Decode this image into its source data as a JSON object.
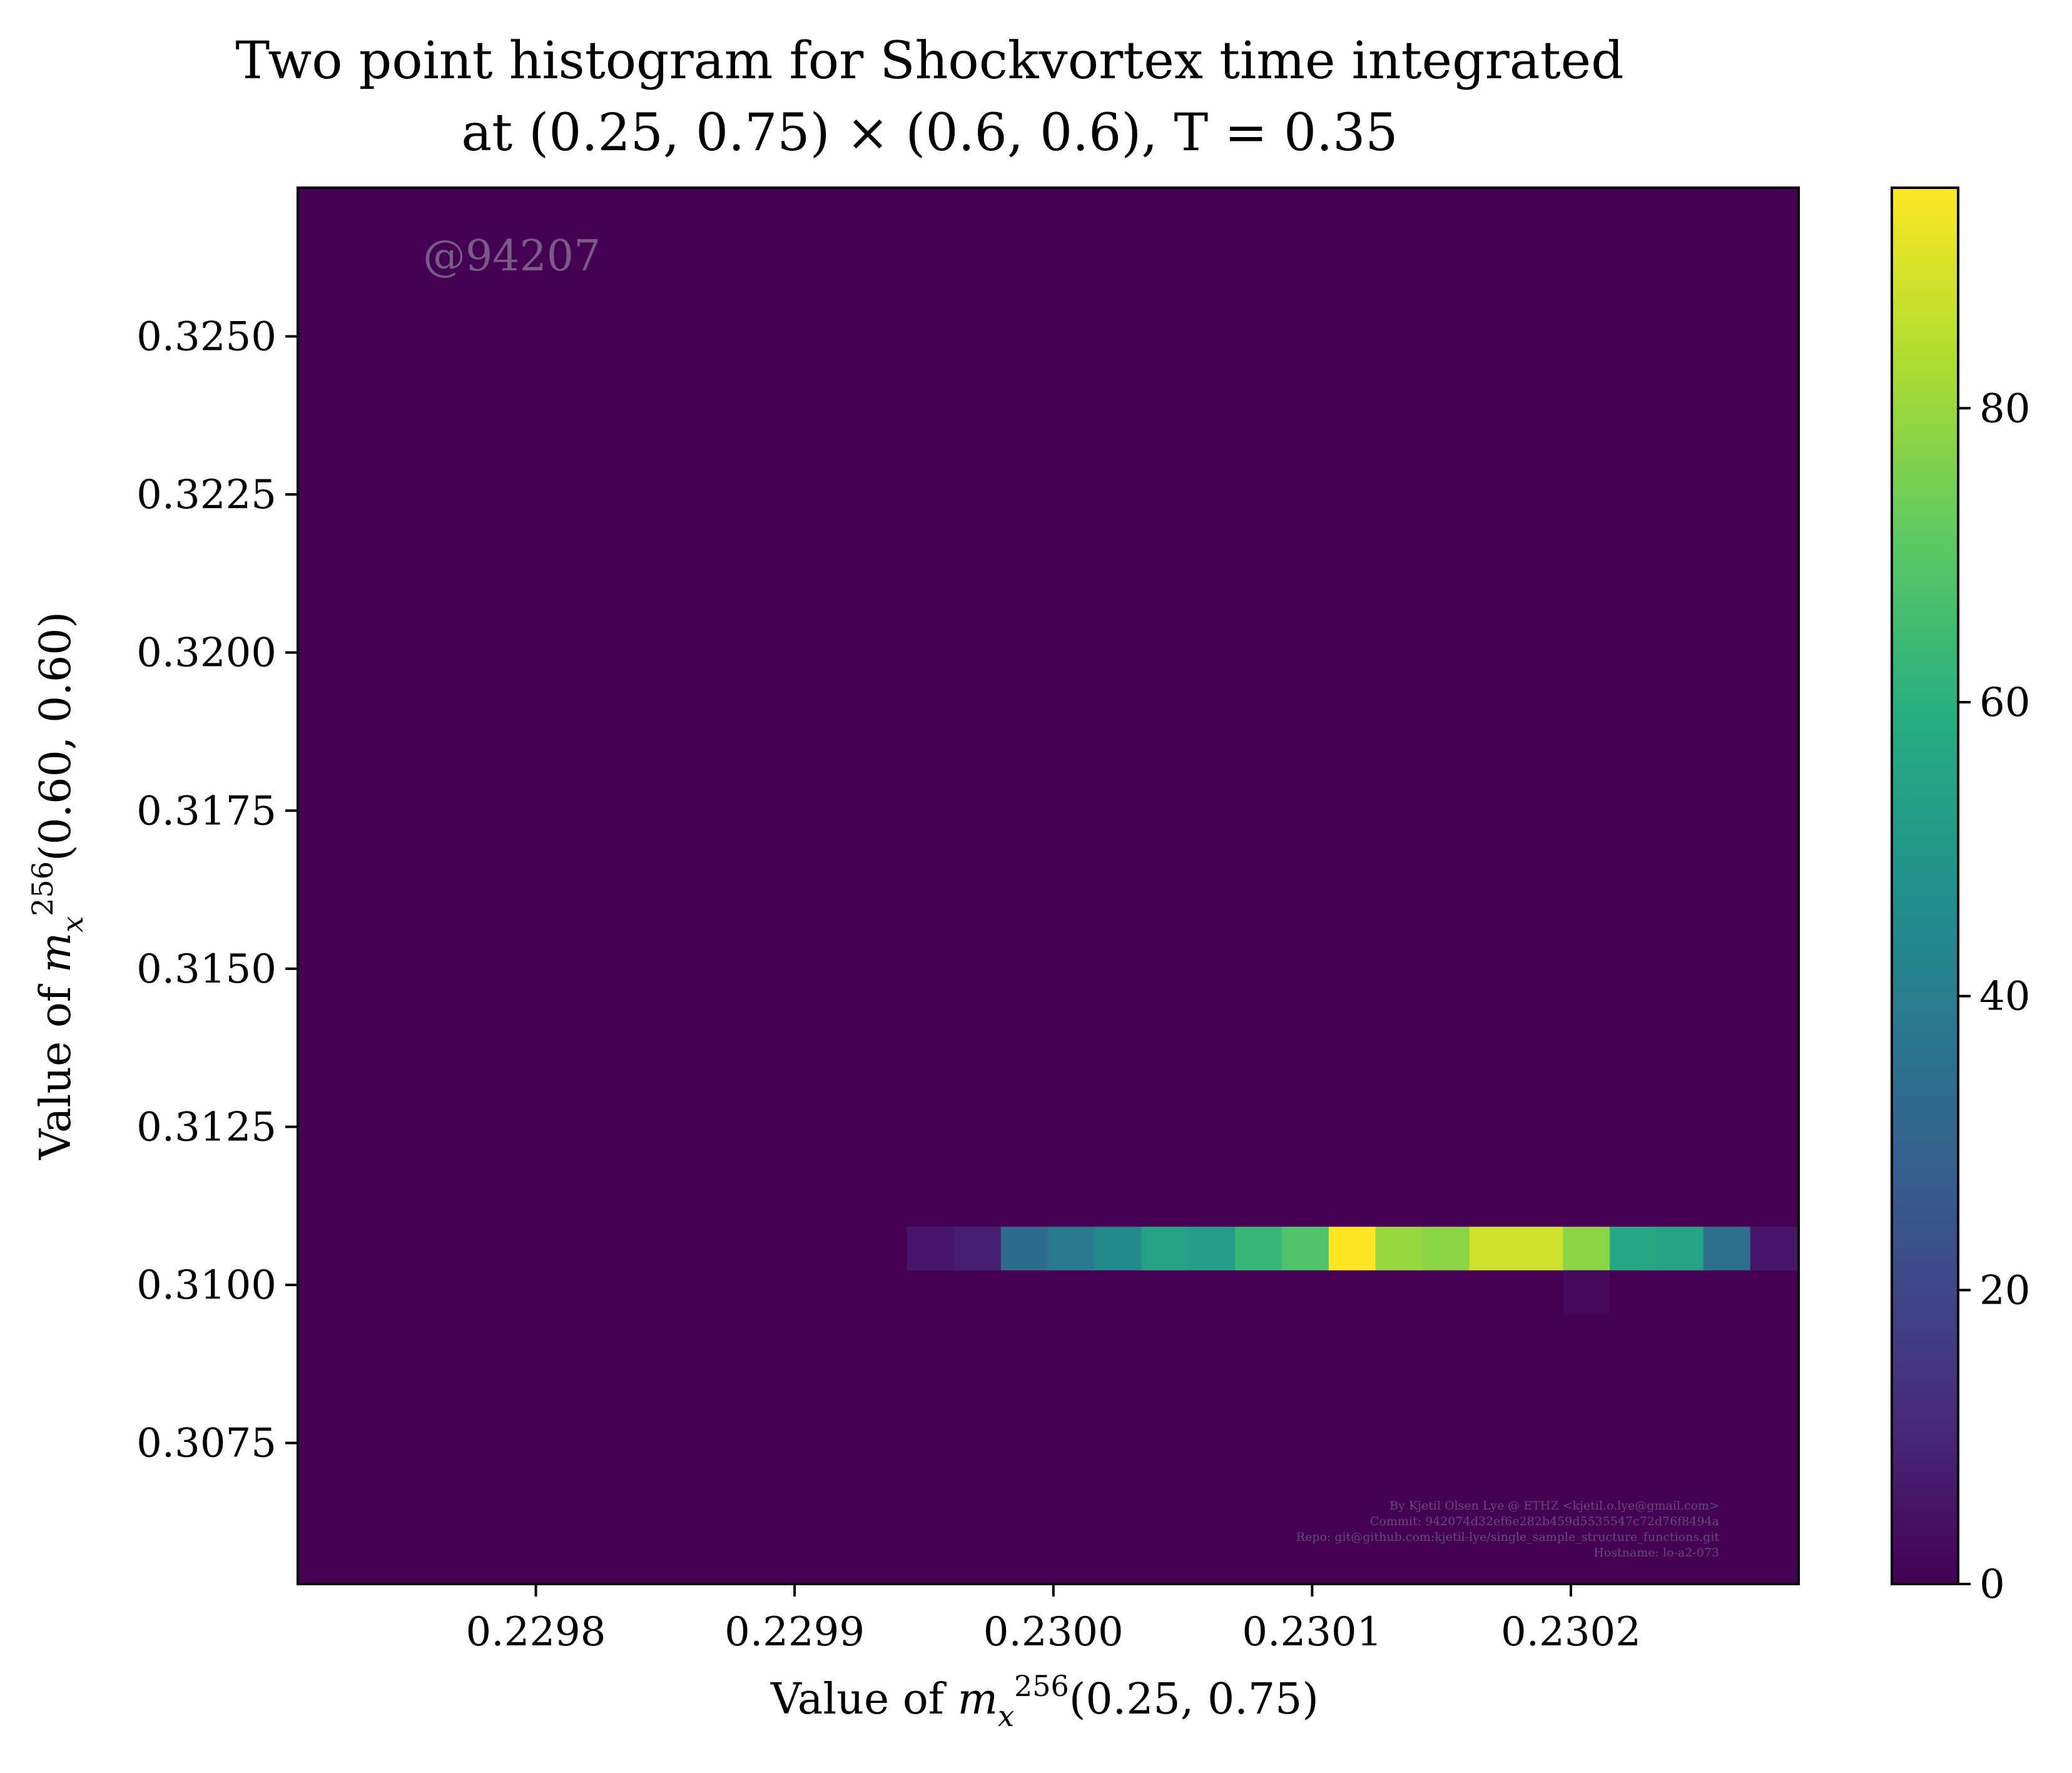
{
  "chart_data": {
    "type": "heatmap",
    "title_lines": [
      "Two point histogram for Shockvortex time integrated",
      "at (0.25, 0.75) × (0.6, 0.6), T = 0.35"
    ],
    "xlabel": "Value of m_x^256(0.25, 0.75)",
    "ylabel": "Value of m_x^256(0.60, 0.60)",
    "xlim": [
      0.229708,
      0.230288
    ],
    "ylim": [
      0.30527,
      0.32735
    ],
    "x_ticks": [
      0.2298,
      0.2299,
      0.23,
      0.2301,
      0.2302
    ],
    "x_tick_labels": [
      "0.2298",
      "0.2299",
      "0.2300",
      "0.2301",
      "0.2302"
    ],
    "y_ticks": [
      0.3075,
      0.31,
      0.3125,
      0.315,
      0.3175,
      0.32,
      0.3225,
      0.325
    ],
    "y_tick_labels": [
      "0.3075",
      "0.3100",
      "0.3125",
      "0.3150",
      "0.3175",
      "0.3200",
      "0.3225",
      "0.3250"
    ],
    "colormap": "viridis",
    "colorbar": {
      "vmin": 0,
      "vmax": 95,
      "ticks": [
        0,
        20,
        40,
        60,
        80
      ],
      "tick_labels": [
        "0",
        "20",
        "40",
        "60",
        "80"
      ]
    },
    "bin_width_x": 1.81e-05,
    "bin_height_y": 0.00069,
    "cells": [
      {
        "x0": 0.2299435,
        "y0": 0.31023,
        "value": 6
      },
      {
        "x0": 0.2299616,
        "y0": 0.31023,
        "value": 8
      },
      {
        "x0": 0.2299797,
        "y0": 0.31023,
        "value": 33
      },
      {
        "x0": 0.2299978,
        "y0": 0.31023,
        "value": 38
      },
      {
        "x0": 0.2300159,
        "y0": 0.31023,
        "value": 45
      },
      {
        "x0": 0.230034,
        "y0": 0.31023,
        "value": 55
      },
      {
        "x0": 0.2300521,
        "y0": 0.31023,
        "value": 52
      },
      {
        "x0": 0.2300702,
        "y0": 0.31023,
        "value": 63
      },
      {
        "x0": 0.2300883,
        "y0": 0.31023,
        "value": 68
      },
      {
        "x0": 0.2301064,
        "y0": 0.31023,
        "value": 95
      },
      {
        "x0": 0.2301245,
        "y0": 0.31023,
        "value": 80
      },
      {
        "x0": 0.2301426,
        "y0": 0.31023,
        "value": 78
      },
      {
        "x0": 0.2301607,
        "y0": 0.31023,
        "value": 88
      },
      {
        "x0": 0.2301788,
        "y0": 0.31023,
        "value": 88
      },
      {
        "x0": 0.2301969,
        "y0": 0.31023,
        "value": 78
      },
      {
        "x0": 0.230215,
        "y0": 0.31023,
        "value": 57
      },
      {
        "x0": 0.2302331,
        "y0": 0.31023,
        "value": 55
      },
      {
        "x0": 0.2302512,
        "y0": 0.31023,
        "value": 35
      },
      {
        "x0": 0.2302693,
        "y0": 0.31023,
        "value": 6
      },
      {
        "x0": 0.2301969,
        "y0": 0.30954,
        "value": 2
      }
    ]
  },
  "watermark": "@94207",
  "credits": [
    "By Kjetil Olsen Lye @ ETHZ <kjetil.o.lye@gmail.com>",
    "Commit: 942074d32ef6e282b459d5535547c72d76f8494a",
    "Repo: git@github.com:kjetil-lye/single_sample_structure_functions.git",
    "Hostname: lo-a2-073"
  ]
}
